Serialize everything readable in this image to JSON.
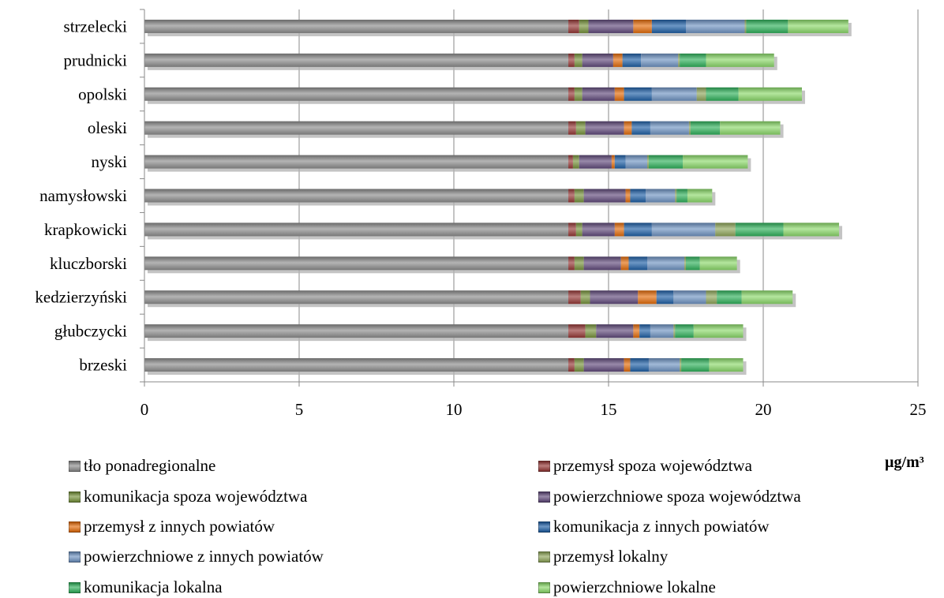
{
  "chart_data": {
    "type": "bar",
    "orientation": "horizontal",
    "stacked": true,
    "categories": [
      "strzelecki",
      "prudnicki",
      "opolski",
      "oleski",
      "nyski",
      "namysłowski",
      "krapkowicki",
      "kluczborski",
      "kedzierzyński",
      "głubczycki",
      "brzeski"
    ],
    "x_ticks": [
      "0",
      "5",
      "10",
      "15",
      "20",
      "25"
    ],
    "xlim": [
      0,
      25
    ],
    "unit": "µg/m³",
    "grid": true,
    "legend_position": "bottom",
    "series": [
      {
        "name": "tło ponadregionalne",
        "color": "#8c8c8c",
        "values": [
          13.7,
          13.7,
          13.7,
          13.7,
          13.7,
          13.7,
          13.7,
          13.7,
          13.7,
          13.7,
          13.7
        ]
      },
      {
        "name": "przemysł spoza województwa",
        "color": "#953735",
        "values": [
          0.35,
          0.2,
          0.2,
          0.25,
          0.15,
          0.2,
          0.25,
          0.2,
          0.4,
          0.55,
          0.2
        ]
      },
      {
        "name": "komunikacja spoza województwa",
        "color": "#77933c",
        "values": [
          0.3,
          0.25,
          0.25,
          0.3,
          0.2,
          0.3,
          0.2,
          0.3,
          0.3,
          0.35,
          0.3
        ]
      },
      {
        "name": "powierzchniowe spoza województwa",
        "color": "#604a7b",
        "values": [
          1.45,
          1.0,
          1.05,
          1.25,
          1.05,
          1.35,
          1.05,
          1.2,
          1.55,
          1.2,
          1.3
        ]
      },
      {
        "name": "przemysł z innych powiatów",
        "color": "#e46c0a",
        "values": [
          0.6,
          0.3,
          0.3,
          0.25,
          0.1,
          0.15,
          0.3,
          0.25,
          0.6,
          0.2,
          0.2
        ]
      },
      {
        "name": "komunikacja z innych powiatów",
        "color": "#1f5fa5",
        "values": [
          1.1,
          0.6,
          0.9,
          0.6,
          0.35,
          0.5,
          0.9,
          0.6,
          0.55,
          0.35,
          0.6
        ]
      },
      {
        "name": "powierzchniowe z innych powiatów",
        "color": "#6f93c2",
        "values": [
          1.9,
          1.2,
          1.45,
          1.25,
          0.7,
          0.95,
          2.05,
          1.2,
          1.05,
          0.75,
          1.0
        ]
      },
      {
        "name": "przemysł lokalny",
        "color": "#8fa65a",
        "values": [
          0.05,
          0.05,
          0.3,
          0.05,
          0.05,
          0.05,
          0.65,
          0.05,
          0.35,
          0.05,
          0.05
        ]
      },
      {
        "name": "komunikacja lokalna",
        "color": "#2fb05a",
        "values": [
          1.35,
          0.85,
          1.05,
          0.95,
          1.1,
          0.35,
          1.55,
          0.45,
          0.8,
          0.6,
          0.9
        ]
      },
      {
        "name": "powierzchniowe lokalne",
        "color": "#8bd96a",
        "values": [
          1.95,
          2.2,
          2.05,
          1.95,
          2.1,
          0.8,
          1.8,
          1.2,
          1.65,
          1.6,
          1.1
        ]
      }
    ]
  }
}
